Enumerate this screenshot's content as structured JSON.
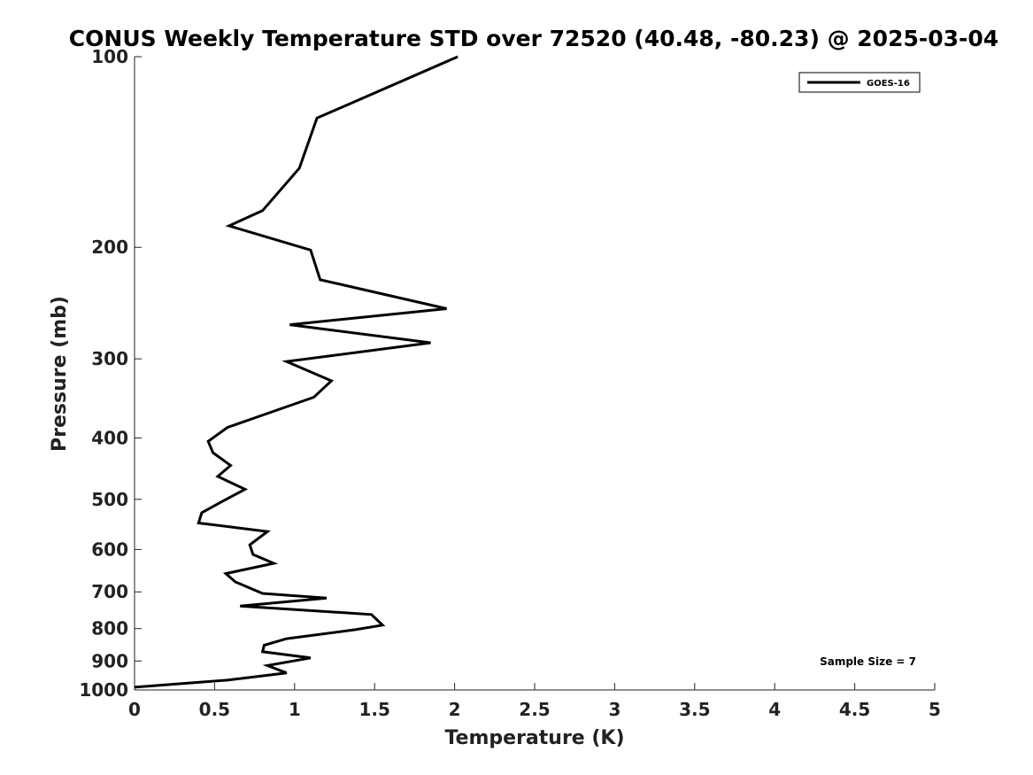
{
  "chart_data": {
    "type": "line",
    "title": "CONUS Weekly Temperature STD over 72520 (40.48, -80.23) @ 2025-03-04",
    "xlabel": "Temperature (K)",
    "ylabel": "Pressure (mb)",
    "xlim": [
      0,
      5
    ],
    "ylim": [
      100,
      1000
    ],
    "y_scale": "log",
    "y_reversed": true,
    "x_ticks": [
      0,
      0.5,
      1,
      1.5,
      2,
      2.5,
      3,
      3.5,
      4,
      4.5,
      5
    ],
    "x_tick_labels": [
      "0",
      "0.5",
      "1",
      "1.5",
      "2",
      "2.5",
      "3",
      "3.5",
      "4",
      "4.5",
      "5"
    ],
    "y_ticks": [
      100,
      200,
      300,
      400,
      500,
      600,
      700,
      800,
      900,
      1000
    ],
    "y_tick_labels": [
      "100",
      "200",
      "300",
      "400",
      "500",
      "600",
      "700",
      "800",
      "900",
      "1000"
    ],
    "grid": false,
    "legend": {
      "position": "top-right",
      "entries": [
        "GOES-16"
      ]
    },
    "annotation": "Sample Size = 7",
    "series": [
      {
        "name": "GOES-16",
        "color": "#000000",
        "points": [
          [
            2.02,
            100
          ],
          [
            1.14,
            125
          ],
          [
            1.03,
            150
          ],
          [
            0.8,
            175
          ],
          [
            0.59,
            185
          ],
          [
            1.1,
            202
          ],
          [
            1.16,
            225
          ],
          [
            1.95,
            250
          ],
          [
            0.97,
            265
          ],
          [
            1.85,
            283
          ],
          [
            0.95,
            303
          ],
          [
            1.23,
            325
          ],
          [
            1.12,
            345
          ],
          [
            0.58,
            385
          ],
          [
            0.46,
            405
          ],
          [
            0.49,
            422
          ],
          [
            0.6,
            442
          ],
          [
            0.52,
            460
          ],
          [
            0.69,
            482
          ],
          [
            0.54,
            505
          ],
          [
            0.42,
            525
          ],
          [
            0.4,
            545
          ],
          [
            0.83,
            562
          ],
          [
            0.72,
            590
          ],
          [
            0.74,
            611
          ],
          [
            0.87,
            631
          ],
          [
            0.57,
            655
          ],
          [
            0.63,
            675
          ],
          [
            0.8,
            704
          ],
          [
            1.2,
            716
          ],
          [
            0.66,
            737
          ],
          [
            1.48,
            760
          ],
          [
            1.55,
            790
          ],
          [
            1.38,
            803
          ],
          [
            0.95,
            830
          ],
          [
            0.81,
            850
          ],
          [
            0.8,
            870
          ],
          [
            1.1,
            890
          ],
          [
            0.83,
            915
          ],
          [
            0.95,
            940
          ],
          [
            0.58,
            965
          ],
          [
            0.0,
            990
          ]
        ]
      }
    ]
  }
}
